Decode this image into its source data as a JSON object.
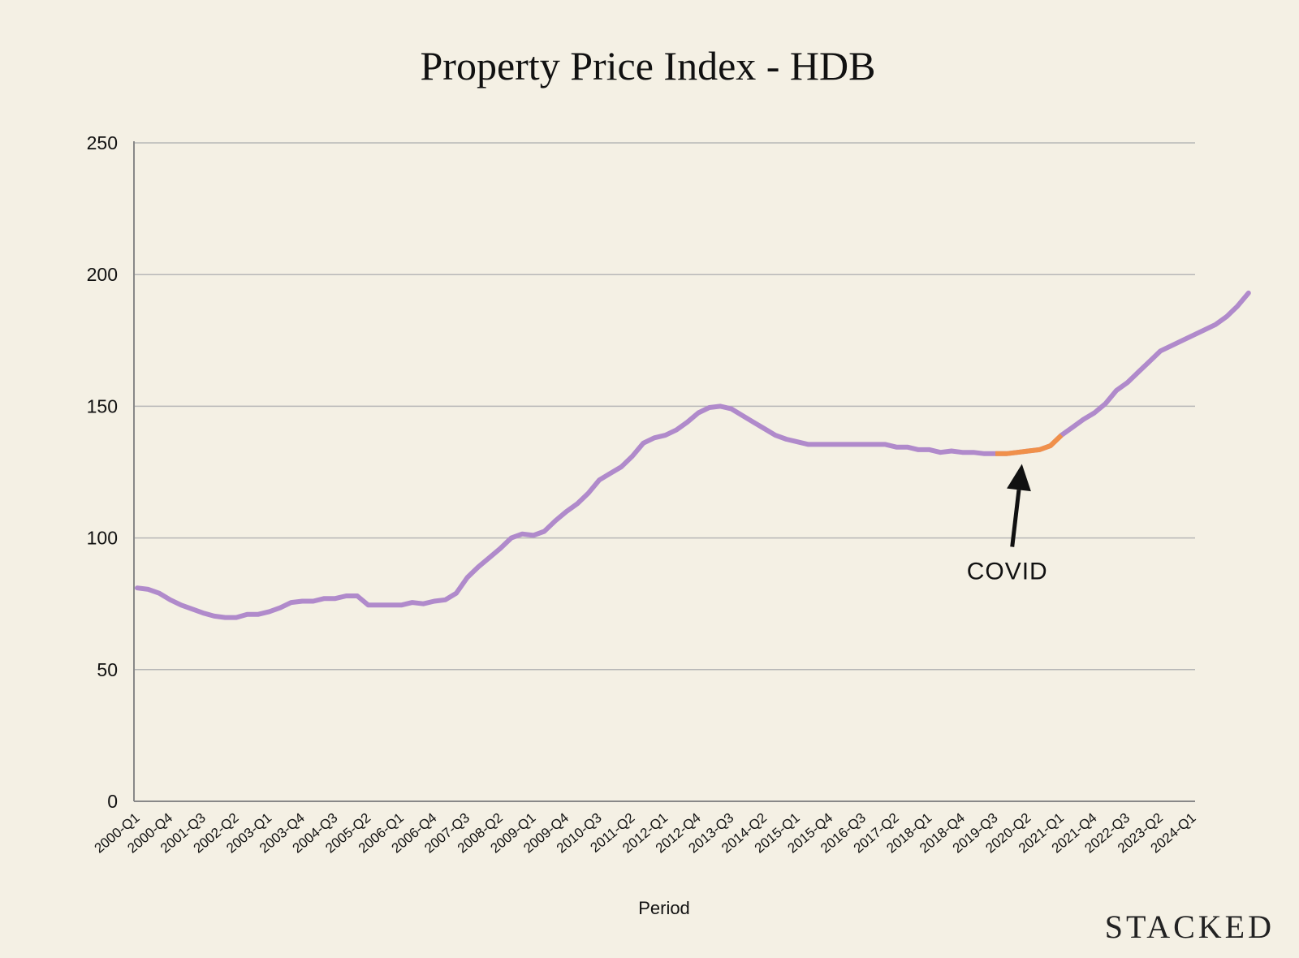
{
  "chart_data": {
    "type": "line",
    "title": "Property Price Index - HDB",
    "xlabel": "Period",
    "ylabel": "",
    "ylim": [
      0,
      250
    ],
    "yticks": [
      0,
      50,
      100,
      150,
      200,
      250
    ],
    "grid": true,
    "legend": "none",
    "x_start": "2000-Q1",
    "x_end": "2024-Q1",
    "x_tick_labels": [
      "2000-Q1",
      "2000-Q4",
      "2001-Q3",
      "2002-Q2",
      "2003-Q1",
      "2003-Q4",
      "2004-Q3",
      "2005-Q2",
      "2006-Q1",
      "2006-Q4",
      "2007-Q3",
      "2008-Q2",
      "2009-Q1",
      "2009-Q4",
      "2010-Q3",
      "2011-Q2",
      "2012-Q1",
      "2012-Q4",
      "2013-Q3",
      "2014-Q2",
      "2015-Q1",
      "2015-Q4",
      "2016-Q3",
      "2017-Q2",
      "2018-Q1",
      "2018-Q4",
      "2019-Q3",
      "2020-Q2",
      "2021-Q1",
      "2021-Q4",
      "2022-Q3",
      "2023-Q2",
      "2024-Q1"
    ],
    "series": [
      {
        "color": "#b08acb",
        "values": [
          81,
          80.5,
          79,
          76.5,
          74.5,
          73,
          71.5,
          70.3,
          69.8,
          69.8,
          71,
          71,
          72,
          73.5,
          75.5,
          76,
          76,
          77,
          77,
          78,
          78,
          74.5,
          74.5,
          74.5,
          74.5,
          75.5,
          75,
          76,
          76.5,
          79,
          85,
          89,
          92.5,
          96,
          100,
          101.5,
          101,
          102.5,
          106.5,
          110,
          113,
          117,
          122,
          124.5,
          127,
          131,
          136,
          138,
          139,
          141,
          144,
          147.5,
          149.5,
          150,
          149,
          146.5,
          144,
          141.5,
          139,
          137.5,
          136.5,
          135.5,
          135.5,
          135.5,
          135.5,
          135.5,
          135.5,
          135.5,
          135.5,
          134.5,
          134.5,
          133.5,
          133.5,
          132.5,
          133,
          132.5,
          132.5,
          132,
          132,
          132,
          132.5,
          133,
          133.5,
          135,
          139,
          142,
          145,
          147.5,
          151,
          156,
          159,
          163,
          167,
          171,
          173,
          175,
          177,
          179,
          181,
          184,
          188,
          193
        ]
      }
    ],
    "highlight": {
      "color": "#f0904a",
      "from": "2019-Q3",
      "to": "2021-Q1"
    },
    "annotations": [
      {
        "text": "COVID",
        "points_to": "2020-Q2"
      }
    ]
  },
  "branding": {
    "logo_text": "STACKED"
  },
  "colors": {
    "background": "#f4f0e4",
    "gridline": "#b7b7b7",
    "axis": "#888888",
    "text": "#111111"
  }
}
